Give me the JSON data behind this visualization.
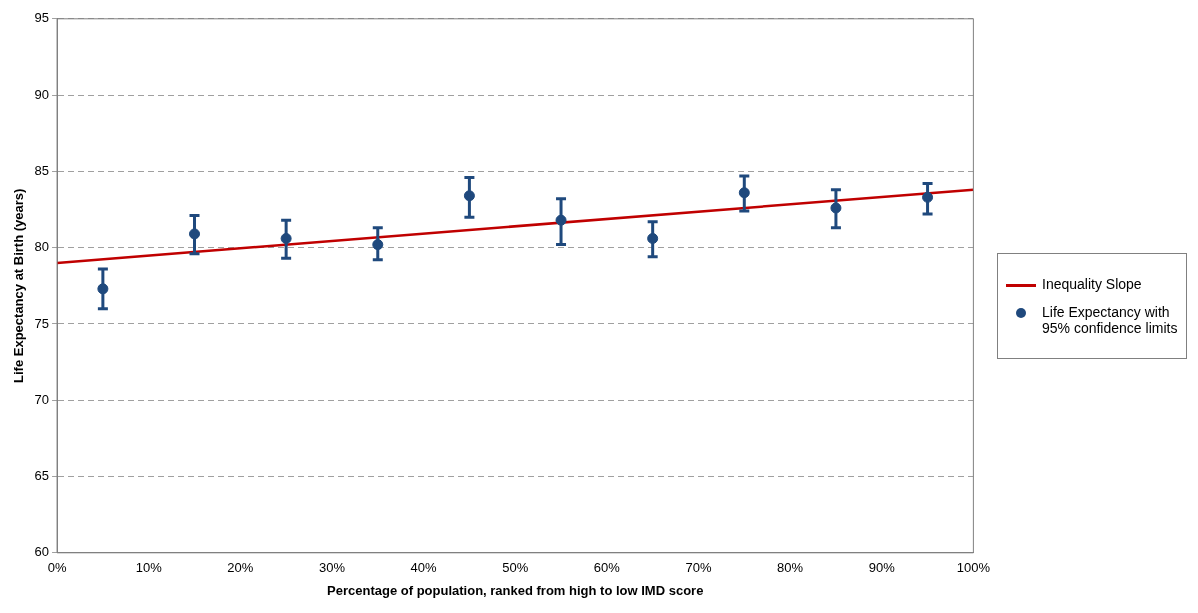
{
  "chart_data": {
    "type": "scatter",
    "xlabel": "Percentage of population, ranked from high to low IMD score",
    "ylabel": "Life Expectancy at Birth (years)",
    "xlim": [
      0,
      100
    ],
    "xticks": [
      {
        "value": 0,
        "label": "0%"
      },
      {
        "value": 10,
        "label": "10%"
      },
      {
        "value": 20,
        "label": "20%"
      },
      {
        "value": 30,
        "label": "30%"
      },
      {
        "value": 40,
        "label": "40%"
      },
      {
        "value": 50,
        "label": "50%"
      },
      {
        "value": 60,
        "label": "60%"
      },
      {
        "value": 70,
        "label": "70%"
      },
      {
        "value": 80,
        "label": "80%"
      },
      {
        "value": 90,
        "label": "90%"
      },
      {
        "value": 100,
        "label": "100%"
      }
    ],
    "ylim": [
      60,
      95
    ],
    "yticks": [
      60,
      65,
      70,
      75,
      80,
      85,
      90,
      95
    ],
    "grid": "y",
    "legend": "right",
    "series": [
      {
        "name": "Inequality Slope",
        "type": "line",
        "color": "#c00000",
        "x": [
          0,
          100
        ],
        "values": [
          79.0,
          83.8
        ]
      },
      {
        "name": "Life Expectancy with 95% confidence limits",
        "type": "scatter",
        "marker": "circle",
        "color": "#1f497d",
        "x": [
          5,
          15,
          25,
          35,
          45,
          55,
          65,
          75,
          85,
          95
        ],
        "values": [
          77.3,
          80.9,
          80.6,
          80.2,
          83.4,
          81.8,
          80.6,
          83.6,
          82.6,
          83.3
        ],
        "errors": [
          [
            76.0,
            78.6
          ],
          [
            79.6,
            82.1
          ],
          [
            79.3,
            81.8
          ],
          [
            79.2,
            81.3
          ],
          [
            82.0,
            84.6
          ],
          [
            80.2,
            83.2
          ],
          [
            79.4,
            81.7
          ],
          [
            82.4,
            84.7
          ],
          [
            81.3,
            83.8
          ],
          [
            82.2,
            84.2
          ]
        ]
      }
    ]
  }
}
